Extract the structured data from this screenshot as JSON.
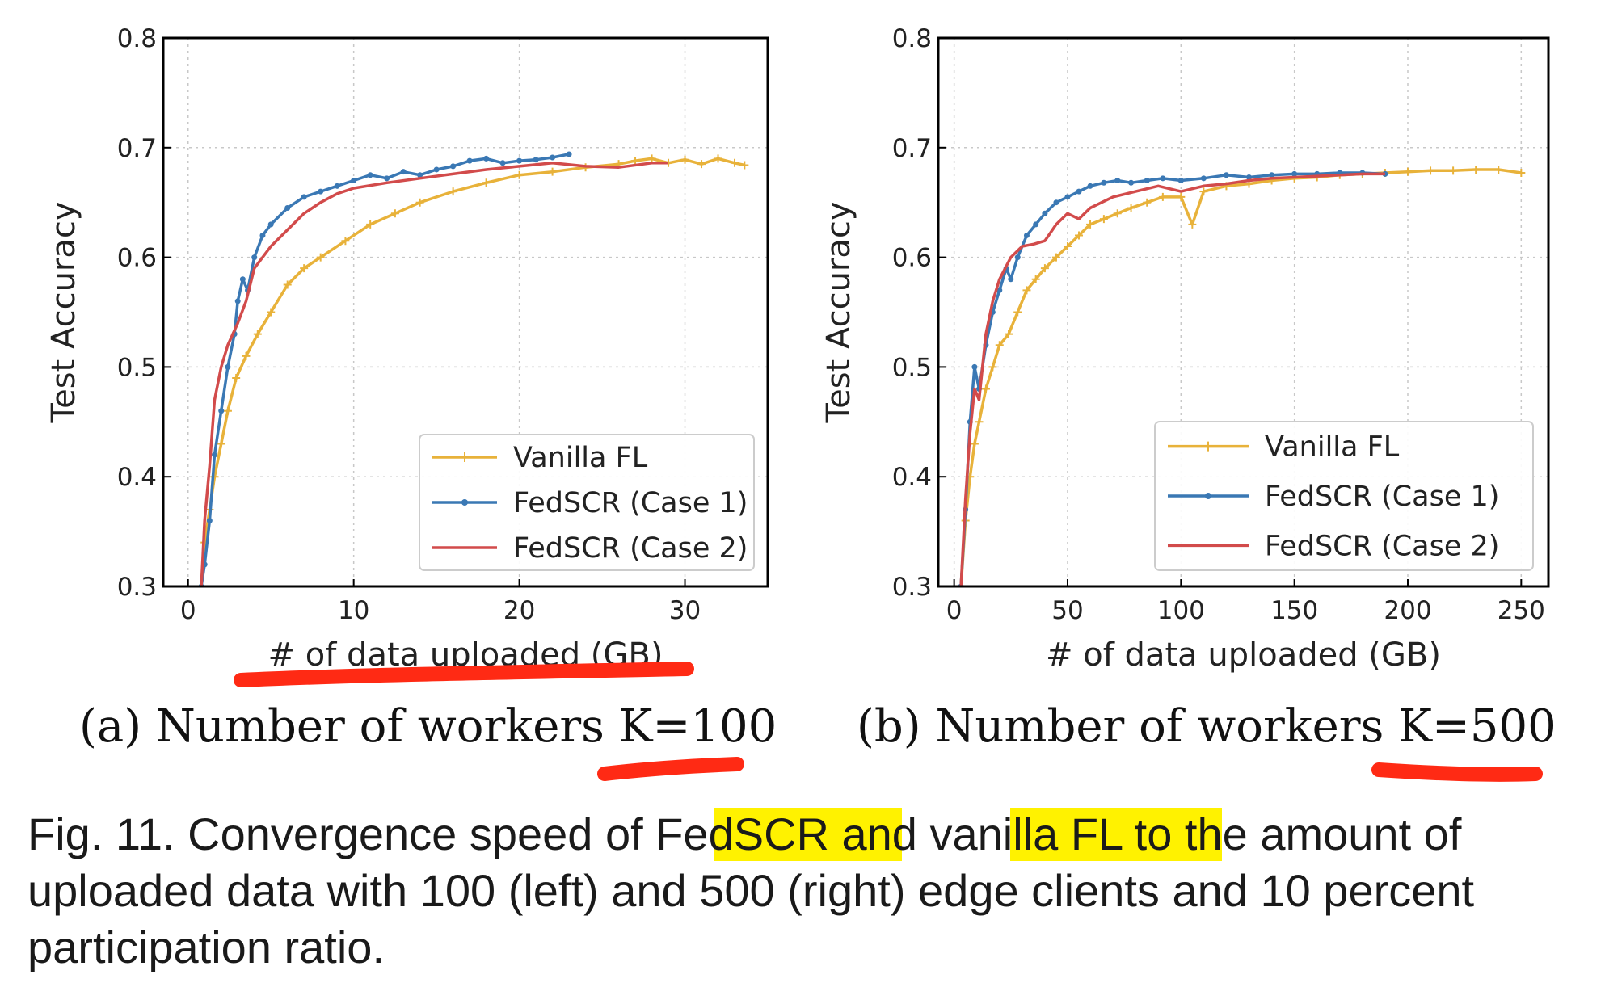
{
  "chart_data": [
    {
      "type": "line",
      "xlabel": "# of data uploaded (GB)",
      "ylabel": "Test Accuracy",
      "xlim": [
        -1.5,
        35
      ],
      "ylim": [
        0.3,
        0.8
      ],
      "xticks": [
        0,
        10,
        20,
        30
      ],
      "yticks": [
        0.3,
        0.4,
        0.5,
        0.6,
        0.7,
        0.8
      ],
      "grid": true,
      "legend_position": "bottom-right",
      "subcaption": "(a) Number of workers K=100",
      "series": [
        {
          "name": "Vanilla FL",
          "color": "#E8B23A",
          "marker": "plus",
          "x": [
            0.8,
            1.0,
            1.3,
            1.6,
            2.0,
            2.4,
            2.9,
            3.5,
            4.2,
            5.0,
            6.0,
            7.0,
            8.0,
            9.5,
            11.0,
            12.5,
            14.0,
            16.0,
            18.0,
            20.0,
            22.0,
            24.0,
            26.0,
            27.0,
            28.0,
            29.0,
            30.0,
            31.0,
            32.0,
            33.0,
            33.6
          ],
          "y": [
            0.3,
            0.34,
            0.37,
            0.4,
            0.43,
            0.46,
            0.49,
            0.51,
            0.53,
            0.55,
            0.575,
            0.59,
            0.6,
            0.615,
            0.63,
            0.64,
            0.65,
            0.66,
            0.668,
            0.675,
            0.678,
            0.682,
            0.685,
            0.688,
            0.69,
            0.686,
            0.689,
            0.685,
            0.69,
            0.686,
            0.684
          ]
        },
        {
          "name": "FedSCR (Case 1)",
          "color": "#3A78B4",
          "marker": "dot",
          "x": [
            0.8,
            1.0,
            1.3,
            1.6,
            2.0,
            2.4,
            2.8,
            3.0,
            3.3,
            3.6,
            4.0,
            4.5,
            5.0,
            6.0,
            7.0,
            8.0,
            9.0,
            10.0,
            11.0,
            12.0,
            13.0,
            14.0,
            15.0,
            16.0,
            17.0,
            18.0,
            19.0,
            20.0,
            21.0,
            22.0,
            23.0
          ],
          "y": [
            0.3,
            0.32,
            0.36,
            0.42,
            0.46,
            0.5,
            0.53,
            0.56,
            0.58,
            0.57,
            0.6,
            0.62,
            0.63,
            0.645,
            0.655,
            0.66,
            0.665,
            0.67,
            0.675,
            0.672,
            0.678,
            0.675,
            0.68,
            0.683,
            0.688,
            0.69,
            0.686,
            0.688,
            0.689,
            0.691,
            0.694
          ]
        },
        {
          "name": "FedSCR (Case 2)",
          "color": "#D24B4B",
          "marker": "none",
          "x": [
            0.8,
            1.0,
            1.3,
            1.6,
            2.0,
            2.4,
            3.0,
            3.5,
            4.0,
            5.0,
            6.0,
            7.0,
            8.0,
            9.0,
            10.0,
            12.0,
            14.0,
            16.0,
            18.0,
            20.0,
            22.0,
            24.0,
            26.0,
            28.0,
            29.0
          ],
          "y": [
            0.3,
            0.36,
            0.41,
            0.47,
            0.5,
            0.52,
            0.54,
            0.56,
            0.59,
            0.61,
            0.625,
            0.64,
            0.65,
            0.658,
            0.663,
            0.668,
            0.672,
            0.676,
            0.68,
            0.683,
            0.686,
            0.683,
            0.682,
            0.686,
            0.686
          ]
        }
      ]
    },
    {
      "type": "line",
      "xlabel": "# of data uploaded (GB)",
      "ylabel": "Test Accuracy",
      "xlim": [
        -7,
        262
      ],
      "ylim": [
        0.3,
        0.8
      ],
      "xticks": [
        0,
        50,
        100,
        150,
        200,
        250
      ],
      "yticks": [
        0.3,
        0.4,
        0.5,
        0.6,
        0.7,
        0.8
      ],
      "grid": true,
      "legend_position": "bottom-right",
      "subcaption": "(b) Number of workers K=500",
      "series": [
        {
          "name": "Vanilla FL",
          "color": "#E8B23A",
          "marker": "plus",
          "x": [
            3,
            5,
            7,
            9,
            11,
            14,
            17,
            20,
            24,
            28,
            32,
            36,
            40,
            45,
            50,
            55,
            60,
            66,
            72,
            78,
            85,
            92,
            100,
            105,
            110,
            120,
            130,
            140,
            150,
            160,
            170,
            180,
            190,
            200,
            210,
            220,
            230,
            240,
            250
          ],
          "y": [
            0.3,
            0.36,
            0.4,
            0.43,
            0.45,
            0.48,
            0.5,
            0.52,
            0.53,
            0.55,
            0.57,
            0.58,
            0.59,
            0.6,
            0.61,
            0.62,
            0.63,
            0.635,
            0.64,
            0.645,
            0.65,
            0.655,
            0.655,
            0.63,
            0.66,
            0.665,
            0.667,
            0.67,
            0.672,
            0.673,
            0.675,
            0.676,
            0.677,
            0.678,
            0.679,
            0.679,
            0.68,
            0.68,
            0.677
          ]
        },
        {
          "name": "FedSCR (Case 1)",
          "color": "#3A78B4",
          "marker": "dot",
          "x": [
            3,
            5,
            7,
            9,
            11,
            14,
            17,
            20,
            23,
            25,
            28,
            32,
            36,
            40,
            45,
            50,
            55,
            60,
            66,
            72,
            78,
            85,
            92,
            100,
            110,
            120,
            130,
            140,
            150,
            160,
            170,
            180,
            190
          ],
          "y": [
            0.3,
            0.37,
            0.45,
            0.5,
            0.48,
            0.52,
            0.55,
            0.57,
            0.59,
            0.58,
            0.6,
            0.62,
            0.63,
            0.64,
            0.65,
            0.655,
            0.66,
            0.665,
            0.668,
            0.67,
            0.668,
            0.67,
            0.672,
            0.67,
            0.672,
            0.675,
            0.673,
            0.675,
            0.676,
            0.676,
            0.677,
            0.677,
            0.676
          ]
        },
        {
          "name": "FedSCR (Case 2)",
          "color": "#D24B4B",
          "marker": "none",
          "x": [
            3,
            5,
            7,
            9,
            11,
            14,
            17,
            20,
            25,
            30,
            35,
            40,
            45,
            50,
            55,
            60,
            70,
            80,
            90,
            100,
            110,
            120,
            130,
            140,
            150,
            160,
            170,
            180,
            190
          ],
          "y": [
            0.3,
            0.38,
            0.44,
            0.48,
            0.47,
            0.53,
            0.56,
            0.58,
            0.6,
            0.61,
            0.612,
            0.615,
            0.63,
            0.64,
            0.635,
            0.645,
            0.655,
            0.66,
            0.665,
            0.66,
            0.665,
            0.667,
            0.67,
            0.672,
            0.673,
            0.674,
            0.675,
            0.676,
            0.676
          ]
        }
      ]
    }
  ],
  "subcaption_a": "(a) Number of workers K=100",
  "subcaption_b": "(b) Number of workers K=500",
  "caption": {
    "prefix": "Fig. 11. Convergence speed of ",
    "hl1": "FedSCR",
    "mid": " and ",
    "hl2": "vanilla FL",
    "line1_end": " to the amount of",
    "line2": "uploaded data with 100 (left) and 500 (right) edge clients and 10 percent",
    "line3": "participation ratio."
  },
  "highlight_color": "#FFF200",
  "annotation_color": "#FF2A14"
}
